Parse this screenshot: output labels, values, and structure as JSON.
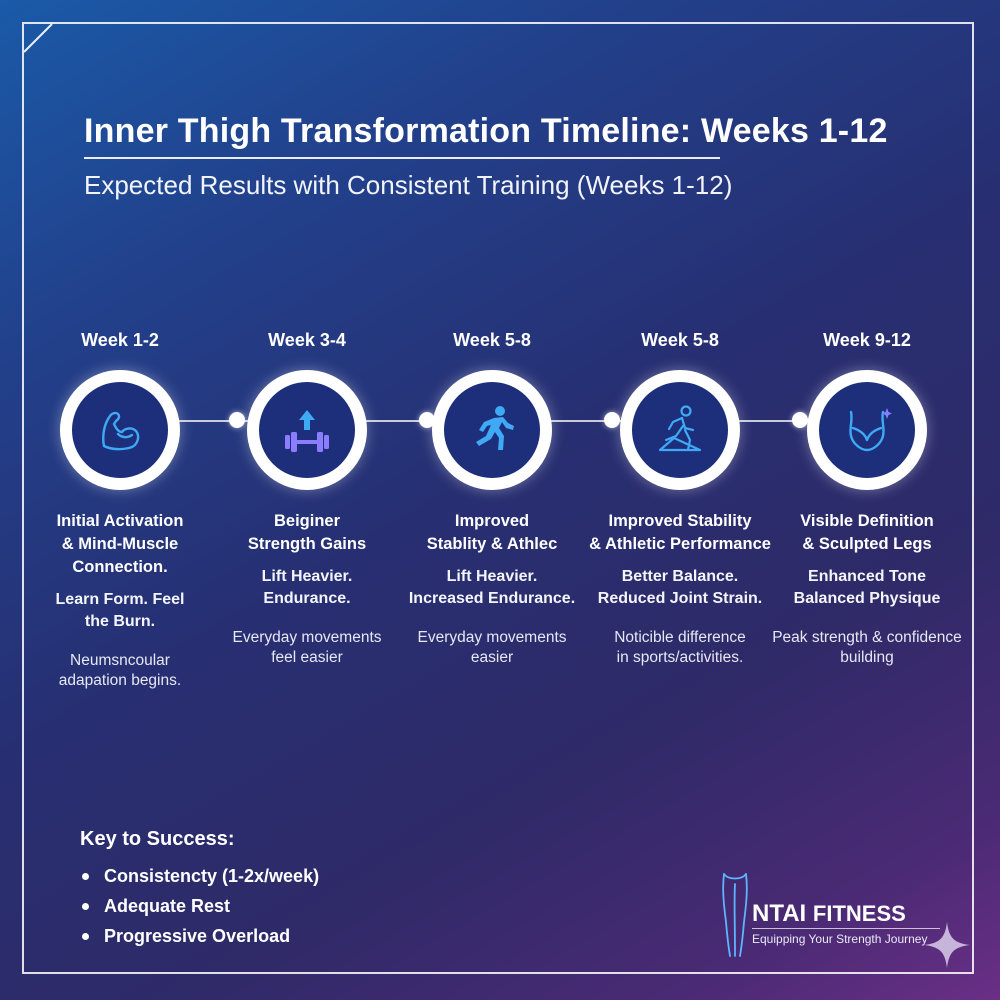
{
  "title": "Inner Thigh Transformation Timeline: Weeks 1-12",
  "subtitle": "Expected Results with Consistent Training (Weeks 1-12)",
  "colors": {
    "accent": "#3fa9f5",
    "circle_fill": "#1d2f7a",
    "icon_purple": "#8a7dff"
  },
  "stages": [
    {
      "week": "Week 1-2",
      "icon": "flexed-arm-icon",
      "heading": "Initial Activation\n& Mind-Muscle\nConnection.",
      "benefit": "Learn Form. Feel\nthe Burn.",
      "note": "Neumsncoular\nadapation begins."
    },
    {
      "week": "Week 3-4",
      "icon": "dumbbell-arrow-icon",
      "heading": "Beiginer\nStrength Gains",
      "benefit": "Lift Heavier.\nEndurance.",
      "note": "Everyday movements\nfeel easier"
    },
    {
      "week": "Week 5-8",
      "icon": "running-person-icon",
      "heading": "Improved\nStablity & Athlec",
      "benefit": "Lift  Heavier.\nIncreased Endurance.",
      "note": "Everyday movements\neasier"
    },
    {
      "week": "Week 5-8",
      "icon": "runner-balance-icon",
      "heading": "Improved Stability\n& Athletic Performance",
      "benefit": "Better Balance.\nReduced Joint Strain.",
      "note": "Noticible difference\nin sports/activities."
    },
    {
      "week": "Week 9-12",
      "icon": "sculpted-hips-icon",
      "heading": "Visible Definition\n& Sculpted Legs",
      "benefit": "Enhanced Tone\nBalanced Physique",
      "note": "Peak strength & confidence\nbuilding"
    }
  ],
  "key": {
    "title": "Key to Success:",
    "items": [
      "Consistencty (1-2x/week)",
      "Adequate Rest",
      "Progressive Overload"
    ]
  },
  "brand": {
    "name_bold": "NTAI",
    "name_light": "FITNESS",
    "tagline": "Equipping Your Strength Journey"
  }
}
